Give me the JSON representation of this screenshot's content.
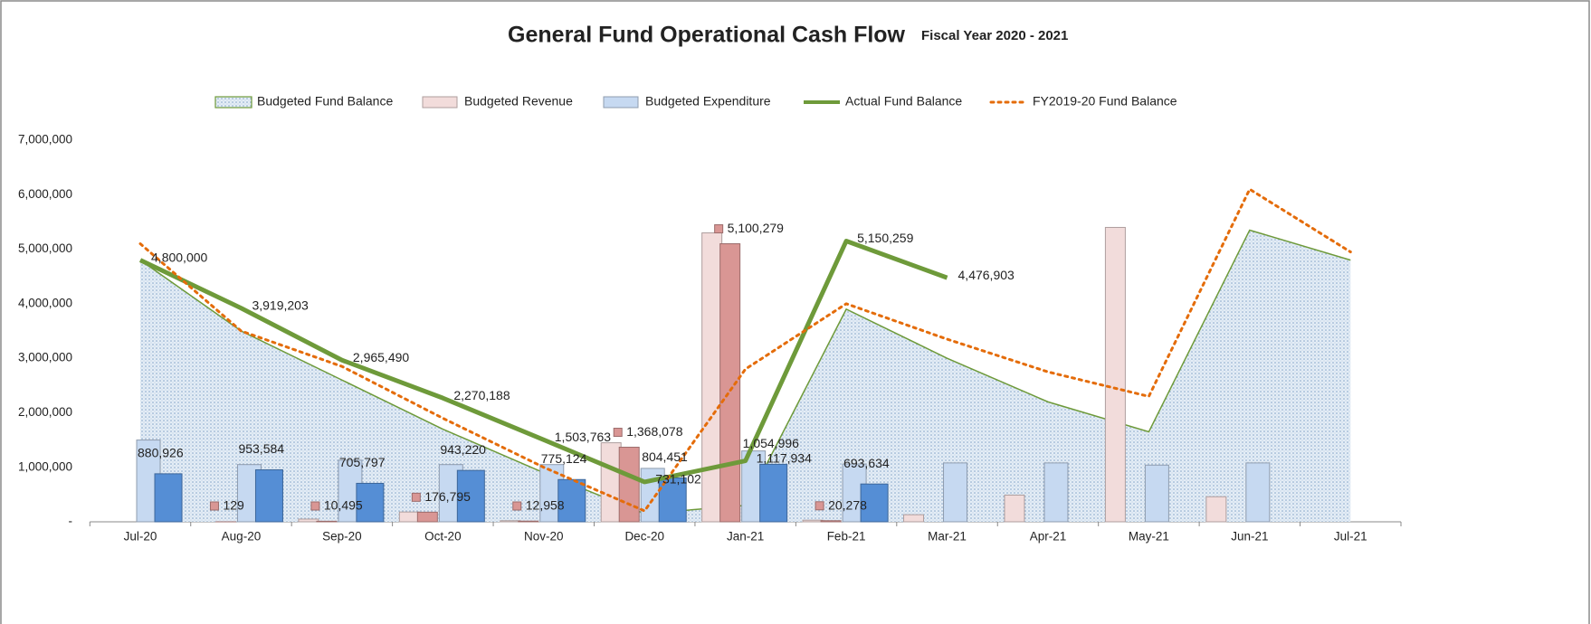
{
  "chart_data": {
    "type": "combo",
    "title": "General Fund Operational Cash Flow",
    "subtitle": "Fiscal Year 2020 - 2021",
    "categories": [
      "Jul-20",
      "Aug-20",
      "Sep-20",
      "Oct-20",
      "Nov-20",
      "Dec-20",
      "Jan-21",
      "Feb-21",
      "Mar-21",
      "Apr-21",
      "May-21",
      "Jun-21",
      "Jul-21"
    ],
    "ylim": [
      0,
      7000000
    ],
    "yticks": [
      {
        "value": 0,
        "label": "-"
      },
      {
        "value": 1000000,
        "label": "1,000,000"
      },
      {
        "value": 2000000,
        "label": "2,000,000"
      },
      {
        "value": 3000000,
        "label": "3,000,000"
      },
      {
        "value": 4000000,
        "label": "4,000,000"
      },
      {
        "value": 5000000,
        "label": "5,000,000"
      },
      {
        "value": 6000000,
        "label": "6,000,000"
      },
      {
        "value": 7000000,
        "label": "7,000,000"
      }
    ],
    "grid": false,
    "legend": "top",
    "series": [
      {
        "name": "Budgeted Fund Balance",
        "type": "area",
        "color": "#6e9a3a",
        "values": [
          4800000,
          3500000,
          2600000,
          1700000,
          900000,
          150000,
          300000,
          3900000,
          3000000,
          2200000,
          1650000,
          5350000,
          4800000
        ]
      },
      {
        "name": "Budgeted Revenue",
        "type": "bar",
        "color": "#f2dcdb",
        "values": [
          0,
          0,
          50000,
          180000,
          20000,
          1450000,
          5300000,
          30000,
          130000,
          490000,
          5400000,
          460000,
          null
        ]
      },
      {
        "name": "Budgeted Expenditure",
        "type": "bar",
        "color": "#c6d9f1",
        "values": [
          1500000,
          1050000,
          1130000,
          1050000,
          1050000,
          980000,
          1300000,
          1060000,
          1080000,
          1080000,
          1040000,
          1080000,
          null
        ]
      },
      {
        "name": "Actual Fund Balance",
        "type": "line",
        "color": "#6e9a3a",
        "values": [
          4800000,
          3919203,
          2965490,
          2270188,
          1503763,
          731102,
          1117934,
          5150259,
          4476903,
          null,
          null,
          null,
          null
        ],
        "value_labels": [
          "4,800,000",
          "3,919,203",
          "2,965,490",
          "2,270,188",
          "1,503,763",
          "731,102",
          "1,117,934",
          "5,150,259",
          "4,476,903",
          null,
          null,
          null,
          null
        ]
      },
      {
        "name": "FY2019-20 Fund Balance",
        "type": "line",
        "dashed": true,
        "color": "#e46c0a",
        "values": [
          5100000,
          3500000,
          2850000,
          1900000,
          1000000,
          200000,
          2800000,
          4000000,
          3350000,
          2750000,
          2300000,
          6100000,
          4950000
        ]
      },
      {
        "type": "bar",
        "color": "#d99694",
        "values": [
          null,
          129,
          10495,
          176795,
          12958,
          1368078,
          5100279,
          20278,
          null,
          null,
          null,
          null,
          null
        ],
        "value_labels": [
          null,
          "129",
          "10,495",
          "176,795",
          "12,958",
          "1,368,078",
          "5,100,279",
          "20,278",
          null,
          null,
          null,
          null,
          null
        ]
      },
      {
        "type": "bar",
        "color": "#558ed5",
        "values": [
          880926,
          953584,
          705797,
          943220,
          775124,
          804451,
          1054996,
          693634,
          null,
          null,
          null,
          null,
          null
        ],
        "value_labels": [
          "880,926",
          "953,584",
          "705,797",
          "943,220",
          "775,124",
          "804,451",
          "1,054,996",
          "693,634",
          null,
          null,
          null,
          null,
          null
        ]
      }
    ]
  }
}
